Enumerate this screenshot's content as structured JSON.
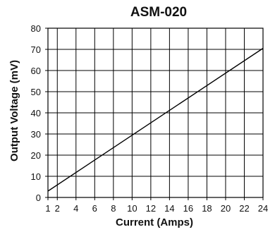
{
  "chart_data": {
    "type": "line",
    "title": "ASM-020",
    "xlabel": "Current  (Amps)",
    "ylabel": "Output Voltage  (mV)",
    "x_ticks": [
      "1",
      "2",
      "4",
      "6",
      "8",
      "10",
      "12",
      "14",
      "16",
      "18",
      "20",
      "22",
      "24"
    ],
    "y_ticks": [
      "0",
      "10",
      "20",
      "30",
      "40",
      "50",
      "60",
      "70",
      "80"
    ],
    "xlim": [
      1,
      24
    ],
    "ylim": [
      0,
      80
    ],
    "grid": true,
    "series": [
      {
        "x": [
          1,
          24
        ],
        "y": [
          3.0,
          70.5
        ],
        "color": "#000000"
      }
    ],
    "colors": {
      "line": "#000000",
      "grid": "#000000",
      "background": "#ffffff"
    }
  }
}
